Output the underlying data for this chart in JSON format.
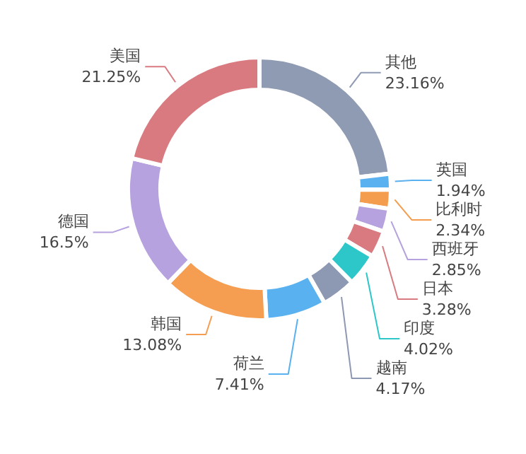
{
  "chart_data": {
    "type": "donut",
    "categories": [
      "其他",
      "英国",
      "比利时",
      "西班牙",
      "日本",
      "印度",
      "越南",
      "荷兰",
      "韩国",
      "德国",
      "美国"
    ],
    "values": [
      23.16,
      1.94,
      2.34,
      2.85,
      3.28,
      4.02,
      4.17,
      7.41,
      13.08,
      16.5,
      21.25
    ],
    "value_labels": [
      "23.16%",
      "1.94%",
      "2.34%",
      "2.85%",
      "3.28%",
      "4.02%",
      "4.17%",
      "7.41%",
      "13.08%",
      "16.5%",
      "21.25%"
    ],
    "colors": [
      "#8f9bb3",
      "#5ab1ef",
      "#f59d4f",
      "#b6a2de",
      "#d87a80",
      "#2ec7c9",
      "#8d98b3",
      "#5ab1ef",
      "#f59e52",
      "#b6a2de",
      "#d87a80"
    ],
    "legend": false
  }
}
